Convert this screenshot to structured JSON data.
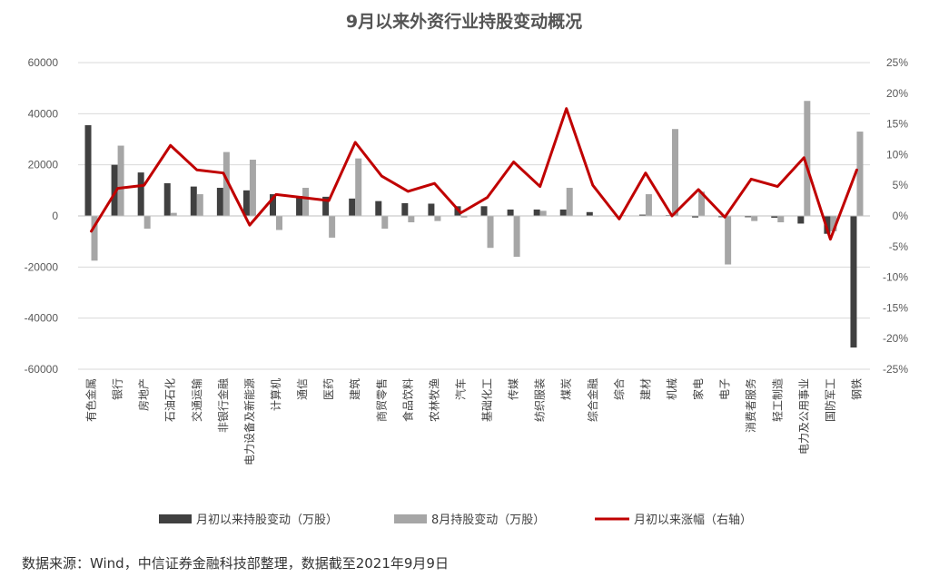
{
  "chart_data": {
    "type": "bar",
    "title": "9月以来外资行业持股变动概况",
    "categories": [
      "有色金属",
      "银行",
      "房地产",
      "石油石化",
      "交通运输",
      "非银行金融",
      "电力设备及新能源",
      "计算机",
      "通信",
      "医药",
      "建筑",
      "商贸零售",
      "食品饮料",
      "农林牧渔",
      "汽车",
      "基础化工",
      "传媒",
      "纺织服装",
      "煤炭",
      "综合金融",
      "综合",
      "建材",
      "机械",
      "家电",
      "电子",
      "消费者服务",
      "轻工制造",
      "电力及公用事业",
      "国防军工",
      "钢铁"
    ],
    "series": [
      {
        "name": "月初以来持股变动（万股）",
        "axis": "left",
        "kind": "bar",
        "color": "#404040",
        "values": [
          35500,
          20000,
          17000,
          12800,
          11500,
          11000,
          10000,
          8500,
          7800,
          7500,
          6800,
          5800,
          5000,
          4800,
          3800,
          3800,
          2500,
          2500,
          2500,
          1500,
          -200,
          500,
          300,
          -600,
          -500,
          -500,
          -700,
          -3000,
          -7000,
          -51500
        ]
      },
      {
        "name": "8月持股变动（万股）",
        "axis": "left",
        "kind": "bar",
        "color": "#a6a6a6",
        "values": [
          -17500,
          27500,
          -5000,
          1200,
          8500,
          25000,
          22000,
          -5500,
          11000,
          -8500,
          22500,
          -5000,
          -2500,
          -2000,
          -600,
          -12500,
          -16000,
          2000,
          11000,
          0,
          300,
          8500,
          34000,
          9500,
          -19000,
          -2000,
          -2500,
          45000,
          -6000,
          33000
        ]
      },
      {
        "name": "月初以来涨幅（右轴）",
        "axis": "right",
        "kind": "line",
        "color": "#c00000",
        "values": [
          -2.5,
          4.5,
          5.0,
          11.5,
          7.5,
          7.0,
          -1.5,
          3.5,
          3.0,
          2.5,
          12.0,
          6.5,
          4.0,
          5.3,
          0.5,
          3.0,
          8.8,
          4.8,
          17.5,
          5.0,
          -0.5,
          7.0,
          0.0,
          4.3,
          -0.2,
          6.0,
          4.8,
          9.5,
          -3.8,
          7.5
        ]
      }
    ],
    "y_left": {
      "min": -60000,
      "max": 60000,
      "step": 20000,
      "ticks": [
        "60000",
        "40000",
        "20000",
        "0",
        "-20000",
        "-40000",
        "-60000"
      ]
    },
    "y_right": {
      "min": -25,
      "max": 25,
      "step": 5,
      "ticks": [
        "25%",
        "20%",
        "15%",
        "10%",
        "5%",
        "0%",
        "-5%",
        "-10%",
        "-15%",
        "-20%",
        "-25%"
      ]
    },
    "grid": true,
    "legend_position": "bottom"
  },
  "source_note": "数据来源：Wind，中信证券金融科技部整理，数据截至2021年9月9日"
}
